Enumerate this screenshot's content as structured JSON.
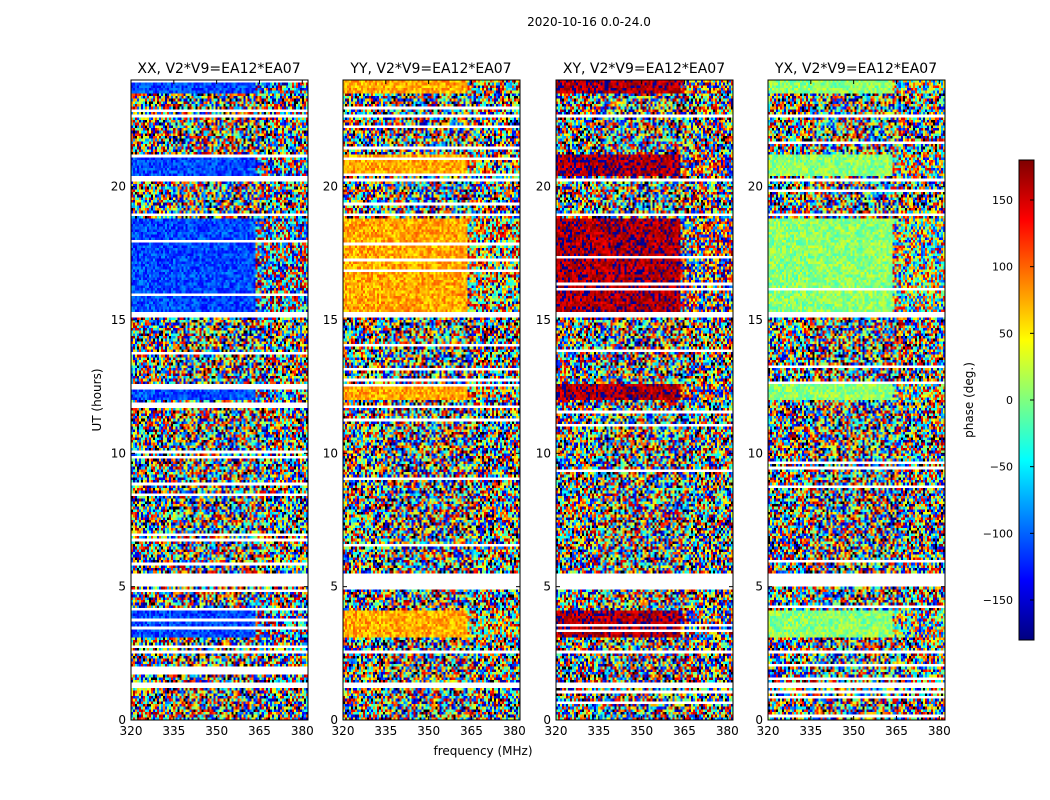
{
  "chart_data": {
    "type": "heatmap",
    "title": "2020-10-16 0.0-24.0",
    "xlabel": "frequency (MHz)",
    "ylabel": "UT (hours)",
    "xlim": [
      320,
      382
    ],
    "ylim": [
      0,
      24
    ],
    "xticks": [
      320,
      335,
      350,
      365,
      380
    ],
    "yticks": [
      0,
      5,
      10,
      15,
      20
    ],
    "colorbar": {
      "label": "phase (deg.)",
      "range": [
        -180,
        180
      ],
      "ticks": [
        150,
        100,
        50,
        0,
        -50,
        -100,
        -150
      ],
      "colormap": "jet",
      "stops": [
        "#00007f",
        "#0000ff",
        "#007fff",
        "#00ffff",
        "#7fff7f",
        "#ffff00",
        "#ff7f00",
        "#ff0000",
        "#7f0000"
      ]
    },
    "panels": [
      {
        "id": "xx",
        "title": "XX, V2*V9=EA12*EA07",
        "coherent_phase": -110,
        "mid_phase": -125
      },
      {
        "id": "yy",
        "title": "YY, V2*V9=EA12*EA07",
        "coherent_phase": 75,
        "mid_phase": 60
      },
      {
        "id": "xy",
        "title": "XY, V2*V9=EA12*EA07",
        "coherent_phase": 165,
        "mid_phase": 160
      },
      {
        "id": "yx",
        "title": "YX, V2*V9=EA12*EA07",
        "coherent_phase": 5,
        "mid_phase": 10
      }
    ],
    "coherent_time_ranges_hours": [
      [
        15.3,
        18.8
      ],
      [
        12.0,
        12.6
      ],
      [
        20.4,
        21.2
      ],
      [
        23.5,
        24.0
      ],
      [
        3.1,
        4.1
      ]
    ],
    "coherent_freq_edge_mhz": 364,
    "blank_time_ranges_hours": [
      [
        15.1,
        15.25
      ],
      [
        5.0,
        5.45
      ],
      [
        1.2,
        1.4
      ],
      [
        2.45,
        2.6
      ],
      [
        18.9,
        19.0
      ],
      [
        20.2,
        20.3
      ],
      [
        22.6,
        22.7
      ]
    ]
  }
}
